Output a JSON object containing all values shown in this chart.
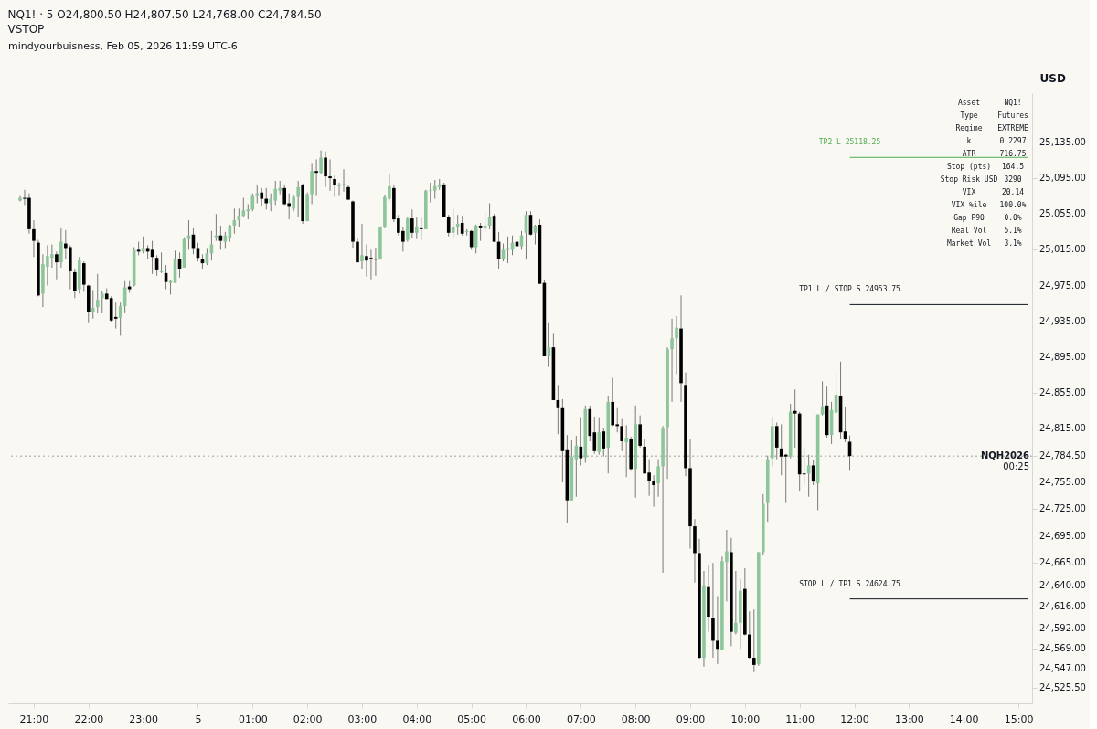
{
  "chart_data": {
    "type": "candlestick",
    "title": "NQ1! · 5 O24,800.50 H24,807.50 L24,768.00 C24,784.50",
    "subtitle": "VSTOP",
    "ylabel": "USD",
    "annotations": [
      "mindyourbuisness, Feb 05, 2026 11:59 UTC-6",
      "00:25",
      "Asset",
      "NQ1!",
      "Type",
      "Futures",
      "Regime",
      "EXTREME",
      "k",
      "0.2297",
      "ATR",
      "716.75",
      "Stop (pts)",
      "164.5",
      "Stop Risk USD",
      "3290",
      "VIX",
      "20.14",
      "VIX %ile",
      "100.0%",
      "Gap P90",
      "0.0%",
      "Real Vol",
      "5.1%",
      "Market Vol",
      "3.1%"
    ],
    "xlim": [
      "2026-02-04T20:37",
      "2026-02-05T15:10"
    ],
    "xticks": [
      {
        "value": "2026-02-04T21:00",
        "label": "21:00"
      },
      {
        "value": "2026-02-04T22:00",
        "label": "22:00"
      },
      {
        "value": "2026-02-04T23:00",
        "label": "23:00"
      },
      {
        "value": "2026-02-05T00:00",
        "label": "5"
      },
      {
        "value": "2026-02-05T01:00",
        "label": "01:00"
      },
      {
        "value": "2026-02-05T02:00",
        "label": "02:00"
      },
      {
        "value": "2026-02-05T03:00",
        "label": "03:00"
      },
      {
        "value": "2026-02-05T04:00",
        "label": "04:00"
      },
      {
        "value": "2026-02-05T05:00",
        "label": "05:00"
      },
      {
        "value": "2026-02-05T06:00",
        "label": "06:00"
      },
      {
        "value": "2026-02-05T07:00",
        "label": "07:00"
      },
      {
        "value": "2026-02-05T08:00",
        "label": "08:00"
      },
      {
        "value": "2026-02-05T09:00",
        "label": "09:00"
      },
      {
        "value": "2026-02-05T10:00",
        "label": "10:00"
      },
      {
        "value": "2026-02-05T11:00",
        "label": "11:00"
      },
      {
        "value": "2026-02-05T12:00",
        "label": "12:00"
      },
      {
        "value": "2026-02-05T13:00",
        "label": "13:00"
      },
      {
        "value": "2026-02-05T14:00",
        "label": "14:00"
      },
      {
        "value": "2026-02-05T15:00",
        "label": "15:00"
      }
    ],
    "ylim": [
      24508,
      25190
    ],
    "yticks": [
      {
        "value": 25135,
        "label": "25,135.00"
      },
      {
        "value": 25095,
        "label": "25,095.00"
      },
      {
        "value": 25055,
        "label": "25,055.00"
      },
      {
        "value": 25015,
        "label": "25,015.00"
      },
      {
        "value": 24975,
        "label": "24,975.00"
      },
      {
        "value": 24935,
        "label": "24,935.00"
      },
      {
        "value": 24895,
        "label": "24,895.00"
      },
      {
        "value": 24855,
        "label": "24,855.00"
      },
      {
        "value": 24815,
        "label": "24,815.00"
      },
      {
        "value": 24784.5,
        "label": "24,784.50"
      },
      {
        "value": 24755,
        "label": "24,755.00"
      },
      {
        "value": 24725,
        "label": "24,725.00"
      },
      {
        "value": 24695,
        "label": "24,695.00"
      },
      {
        "value": 24665,
        "label": "24,665.00"
      },
      {
        "value": 24640,
        "label": "24,640.00"
      },
      {
        "value": 24616,
        "label": "24,616.00"
      },
      {
        "value": 24592,
        "label": "24,592.00"
      },
      {
        "value": 24569,
        "label": "24,569.00"
      },
      {
        "value": 24547,
        "label": "24,547.00"
      },
      {
        "value": 24525.5,
        "label": "24,525.50"
      }
    ],
    "ref_lines": [
      {
        "axis": "y",
        "value": 25118.25,
        "label": "TP2 L 25118.25",
        "color": "#4caf50",
        "line_style": "solid"
      },
      {
        "axis": "y",
        "value": 24953.75,
        "label": "TP1 L / STOP S 24953.75",
        "color": "#131722",
        "line_style": "solid"
      },
      {
        "axis": "y",
        "value": 24624.75,
        "label": "STOP L / TP1 S 24624.75",
        "color": "#131722",
        "line_style": "solid"
      },
      {
        "axis": "y",
        "value": 24784.5,
        "label": "NQH2026",
        "color": "#9e9e9e",
        "line_style": "dotted"
      }
    ],
    "x": [
      "2026-02-04T20:45",
      "2026-02-04T20:50",
      "2026-02-04T20:55",
      "2026-02-04T21:00",
      "2026-02-04T21:05",
      "2026-02-04T21:10",
      "2026-02-04T21:15",
      "2026-02-04T21:20",
      "2026-02-04T21:25",
      "2026-02-04T21:30",
      "2026-02-04T21:35",
      "2026-02-04T21:40",
      "2026-02-04T21:45",
      "2026-02-04T21:50",
      "2026-02-04T21:55",
      "2026-02-04T22:00",
      "2026-02-04T22:05",
      "2026-02-04T22:10",
      "2026-02-04T22:15",
      "2026-02-04T22:20",
      "2026-02-04T22:25",
      "2026-02-04T22:30",
      "2026-02-04T22:35",
      "2026-02-04T22:40",
      "2026-02-04T22:45",
      "2026-02-04T22:50",
      "2026-02-04T22:55",
      "2026-02-04T23:00",
      "2026-02-04T23:05",
      "2026-02-04T23:10",
      "2026-02-04T23:15",
      "2026-02-04T23:20",
      "2026-02-04T23:25",
      "2026-02-04T23:30",
      "2026-02-04T23:35",
      "2026-02-04T23:40",
      "2026-02-04T23:45",
      "2026-02-04T23:50",
      "2026-02-04T23:55",
      "2026-02-05T00:00",
      "2026-02-05T00:05",
      "2026-02-05T00:10",
      "2026-02-05T00:15",
      "2026-02-05T00:20",
      "2026-02-05T00:25",
      "2026-02-05T00:30",
      "2026-02-05T00:35",
      "2026-02-05T00:40",
      "2026-02-05T00:45",
      "2026-02-05T00:50",
      "2026-02-05T00:55",
      "2026-02-05T01:00",
      "2026-02-05T01:05",
      "2026-02-05T01:10",
      "2026-02-05T01:15",
      "2026-02-05T01:20",
      "2026-02-05T01:25",
      "2026-02-05T01:30",
      "2026-02-05T01:35",
      "2026-02-05T01:40",
      "2026-02-05T01:45",
      "2026-02-05T01:50",
      "2026-02-05T01:55",
      "2026-02-05T02:00",
      "2026-02-05T02:05",
      "2026-02-05T02:10",
      "2026-02-05T02:15",
      "2026-02-05T02:20",
      "2026-02-05T02:25",
      "2026-02-05T02:30",
      "2026-02-05T02:35",
      "2026-02-05T02:40",
      "2026-02-05T02:45",
      "2026-02-05T02:50",
      "2026-02-05T02:55",
      "2026-02-05T03:00",
      "2026-02-05T03:05",
      "2026-02-05T03:10",
      "2026-02-05T03:15",
      "2026-02-05T03:20",
      "2026-02-05T03:25",
      "2026-02-05T03:30",
      "2026-02-05T03:35",
      "2026-02-05T03:40",
      "2026-02-05T03:45",
      "2026-02-05T03:50",
      "2026-02-05T03:55",
      "2026-02-05T04:00",
      "2026-02-05T04:05",
      "2026-02-05T04:10",
      "2026-02-05T04:15",
      "2026-02-05T04:20",
      "2026-02-05T04:25",
      "2026-02-05T04:30",
      "2026-02-05T04:35",
      "2026-02-05T04:40",
      "2026-02-05T04:45",
      "2026-02-05T04:50",
      "2026-02-05T04:55",
      "2026-02-05T05:00",
      "2026-02-05T05:05",
      "2026-02-05T05:10",
      "2026-02-05T05:15",
      "2026-02-05T05:20",
      "2026-02-05T05:25",
      "2026-02-05T05:30",
      "2026-02-05T05:35",
      "2026-02-05T05:40",
      "2026-02-05T05:45",
      "2026-02-05T05:50",
      "2026-02-05T05:55",
      "2026-02-05T06:00",
      "2026-02-05T06:05",
      "2026-02-05T06:10",
      "2026-02-05T06:15",
      "2026-02-05T06:20",
      "2026-02-05T06:25",
      "2026-02-05T06:30",
      "2026-02-05T06:35",
      "2026-02-05T06:40",
      "2026-02-05T06:45",
      "2026-02-05T06:50",
      "2026-02-05T06:55",
      "2026-02-05T07:00",
      "2026-02-05T07:05",
      "2026-02-05T07:10",
      "2026-02-05T07:15",
      "2026-02-05T07:20",
      "2026-02-05T07:25",
      "2026-02-05T07:30",
      "2026-02-05T07:35",
      "2026-02-05T07:40",
      "2026-02-05T07:45",
      "2026-02-05T07:50",
      "2026-02-05T07:55",
      "2026-02-05T08:00",
      "2026-02-05T08:05",
      "2026-02-05T08:10",
      "2026-02-05T08:15",
      "2026-02-05T08:20",
      "2026-02-05T08:25",
      "2026-02-05T08:30",
      "2026-02-05T08:35",
      "2026-02-05T08:40",
      "2026-02-05T08:45",
      "2026-02-05T08:50",
      "2026-02-05T08:55",
      "2026-02-05T09:00",
      "2026-02-05T09:05",
      "2026-02-05T09:10",
      "2026-02-05T09:15",
      "2026-02-05T09:20",
      "2026-02-05T09:25",
      "2026-02-05T09:30",
      "2026-02-05T09:35",
      "2026-02-05T09:40",
      "2026-02-05T09:45",
      "2026-02-05T09:50",
      "2026-02-05T09:55",
      "2026-02-05T10:00",
      "2026-02-05T10:05",
      "2026-02-05T10:10",
      "2026-02-05T10:15",
      "2026-02-05T10:20",
      "2026-02-05T10:25",
      "2026-02-05T10:30",
      "2026-02-05T10:35",
      "2026-02-05T10:40",
      "2026-02-05T10:45",
      "2026-02-05T10:50",
      "2026-02-05T10:55",
      "2026-02-05T11:00",
      "2026-02-05T11:05",
      "2026-02-05T11:10",
      "2026-02-05T11:15",
      "2026-02-05T11:20",
      "2026-02-05T11:25",
      "2026-02-05T11:30",
      "2026-02-05T11:35",
      "2026-02-05T11:40",
      "2026-02-05T11:45",
      "2026-02-05T11:50",
      "2026-02-05T11:55"
    ],
    "ohlc": [
      [
        25070,
        25075,
        25069,
        25073
      ],
      [
        25073,
        25082,
        25065,
        25072
      ],
      [
        25073,
        25078,
        25033,
        25038
      ],
      [
        25038,
        25048,
        25007,
        25025
      ],
      [
        25023,
        25026,
        24963,
        24964
      ],
      [
        24966,
        25010,
        24951,
        24999
      ],
      [
        24996,
        25020,
        24975,
        25008
      ],
      [
        25006,
        25021,
        24995,
        25010
      ],
      [
        25010,
        25013,
        24982,
        25001
      ],
      [
        25001,
        25039,
        24995,
        25024
      ],
      [
        25022,
        25037,
        25005,
        25016
      ],
      [
        25018,
        25020,
        24971,
        24991
      ],
      [
        24990,
        24994,
        24961,
        24969
      ],
      [
        24971,
        25007,
        24966,
        25003
      ],
      [
        25000,
        25002,
        24968,
        24976
      ],
      [
        24975,
        24976,
        24933,
        24946
      ],
      [
        24946,
        24970,
        24938,
        24950
      ],
      [
        24951,
        24988,
        24944,
        24959
      ],
      [
        24961,
        24969,
        24944,
        24966
      ],
      [
        24966,
        24972,
        24960,
        24960
      ],
      [
        24961,
        24963,
        24934,
        24936
      ],
      [
        24940,
        24956,
        24927,
        24938
      ],
      [
        24939,
        24956,
        24919,
        24952
      ],
      [
        24952,
        24980,
        24944,
        24973
      ],
      [
        24974,
        24980,
        24967,
        24971
      ],
      [
        24975,
        25018,
        24974,
        25015
      ],
      [
        25015,
        25024,
        25009,
        25013
      ],
      [
        25013,
        25030,
        25011,
        25016
      ],
      [
        25016,
        25020,
        25005,
        25013
      ],
      [
        25015,
        25025,
        24988,
        25007
      ],
      [
        25006,
        25009,
        24986,
        24992
      ],
      [
        24990,
        25012,
        24989,
        24991
      ],
      [
        24989,
        24998,
        24971,
        24979
      ],
      [
        24978,
        24981,
        24965,
        24980
      ],
      [
        24978,
        25014,
        24978,
        25005
      ],
      [
        25005,
        25012,
        24984,
        24993
      ],
      [
        24995,
        25029,
        24995,
        25027
      ],
      [
        25027,
        25048,
        25015,
        25031
      ],
      [
        25032,
        25039,
        25010,
        25016
      ],
      [
        25016,
        25023,
        25002,
        25006
      ],
      [
        25005,
        25010,
        24993,
        25000
      ],
      [
        25000,
        25016,
        24998,
        25011
      ],
      [
        25011,
        25036,
        25003,
        25021
      ],
      [
        25029,
        25055,
        25025,
        25031
      ],
      [
        25031,
        25042,
        25015,
        25025
      ],
      [
        25024,
        25035,
        25016,
        25031
      ],
      [
        25028,
        25043,
        25024,
        25042
      ],
      [
        25042,
        25061,
        25033,
        25048
      ],
      [
        25048,
        25061,
        25041,
        25053
      ],
      [
        25053,
        25073,
        25052,
        25059
      ],
      [
        25058,
        25066,
        25049,
        25060
      ],
      [
        25060,
        25078,
        25058,
        25075
      ],
      [
        25075,
        25088,
        25067,
        25078
      ],
      [
        25079,
        25084,
        25064,
        25072
      ],
      [
        25072,
        25084,
        25060,
        25067
      ],
      [
        25067,
        25078,
        25058,
        25072
      ],
      [
        25070,
        25092,
        25065,
        25083
      ],
      [
        25081,
        25092,
        25077,
        25084
      ],
      [
        25084,
        25088,
        25065,
        25066
      ],
      [
        25067,
        25078,
        25049,
        25063
      ],
      [
        25061,
        25076,
        25058,
        25074
      ],
      [
        25074,
        25092,
        25052,
        25085
      ],
      [
        25087,
        25089,
        25044,
        25047
      ],
      [
        25047,
        25079,
        25047,
        25077
      ],
      [
        25077,
        25112,
        25066,
        25103
      ],
      [
        25103,
        25116,
        25075,
        25101
      ],
      [
        25101,
        25126,
        25100,
        25118
      ],
      [
        25118,
        25125,
        25085,
        25097
      ],
      [
        25097,
        25116,
        25081,
        25095
      ],
      [
        25094,
        25098,
        25074,
        25087
      ],
      [
        25086,
        25090,
        25075,
        25088
      ],
      [
        25088,
        25105,
        25080,
        25087
      ],
      [
        25085,
        25087,
        25071,
        25071
      ],
      [
        25069,
        25070,
        25017,
        25024
      ],
      [
        25024,
        25028,
        25001,
        25001
      ],
      [
        25002,
        25044,
        24993,
        25009
      ],
      [
        25008,
        25021,
        24985,
        25003
      ],
      [
        25006,
        25015,
        24982,
        25005
      ],
      [
        25005,
        25017,
        24986,
        25004
      ],
      [
        25005,
        25041,
        25004,
        25040
      ],
      [
        25040,
        25076,
        25039,
        25074
      ],
      [
        25072,
        25099,
        25070,
        25086
      ],
      [
        25084,
        25088,
        25046,
        25049
      ],
      [
        25050,
        25054,
        25031,
        25034
      ],
      [
        25036,
        25041,
        25013,
        25024
      ],
      [
        25026,
        25052,
        25024,
        25050
      ],
      [
        25050,
        25060,
        25028,
        25034
      ],
      [
        25034,
        25051,
        25027,
        25041
      ],
      [
        25039,
        25051,
        25026,
        25038
      ],
      [
        25038,
        25082,
        25038,
        25081
      ],
      [
        25081,
        25090,
        25068,
        25082
      ],
      [
        25081,
        25093,
        25072,
        25086
      ],
      [
        25085,
        25094,
        25082,
        25088
      ],
      [
        25088,
        25090,
        25051,
        25052
      ],
      [
        25052,
        25054,
        25030,
        25034
      ],
      [
        25034,
        25061,
        25029,
        25040
      ],
      [
        25040,
        25054,
        25032,
        25044
      ],
      [
        25045,
        25053,
        25031,
        25033
      ],
      [
        25035,
        25038,
        25031,
        25036
      ],
      [
        25036,
        25037,
        25015,
        25018
      ],
      [
        25018,
        25043,
        25011,
        25042
      ],
      [
        25042,
        25045,
        25025,
        25039
      ],
      [
        25039,
        25056,
        25035,
        25042
      ],
      [
        25042,
        25067,
        25038,
        25052
      ],
      [
        25053,
        25055,
        25024,
        25024
      ],
      [
        25024,
        25035,
        24994,
        25005
      ],
      [
        25005,
        25022,
        25002,
        25015
      ],
      [
        25015,
        25030,
        25000,
        25016
      ],
      [
        25015,
        25031,
        25009,
        25023
      ],
      [
        25024,
        25028,
        25016,
        25019
      ],
      [
        25019,
        25036,
        25015,
        25031
      ],
      [
        25034,
        25058,
        25004,
        25054
      ],
      [
        25054,
        25058,
        25031,
        25032
      ],
      [
        25034,
        25043,
        25021,
        25042
      ],
      [
        25043,
        25049,
        24977,
        24977
      ],
      [
        24978,
        24981,
        24896,
        24896
      ],
      [
        24896,
        24933,
        24884,
        24906
      ],
      [
        24906,
        24921,
        24847,
        24847
      ],
      [
        24847,
        24864,
        24809,
        24838
      ],
      [
        24838,
        24848,
        24755,
        24790
      ],
      [
        24791,
        24808,
        24710,
        24735
      ],
      [
        24735,
        24802,
        24735,
        24784
      ],
      [
        24781,
        24807,
        24739,
        24796
      ],
      [
        24795,
        24827,
        24774,
        24782
      ],
      [
        24783,
        24841,
        24777,
        24837
      ],
      [
        24837,
        24841,
        24801,
        24807
      ],
      [
        24811,
        24828,
        24787,
        24790
      ],
      [
        24789,
        24827,
        24786,
        24811
      ],
      [
        24812,
        24816,
        24784,
        24793
      ],
      [
        24794,
        24851,
        24765,
        24845
      ],
      [
        24845,
        24872,
        24818,
        24819
      ],
      [
        24820,
        24838,
        24811,
        24818
      ],
      [
        24818,
        24826,
        24790,
        24801
      ],
      [
        24800,
        24819,
        24761,
        24804
      ],
      [
        24803,
        24806,
        24768,
        24770
      ],
      [
        24770,
        24841,
        24738,
        24820
      ],
      [
        24820,
        24830,
        24794,
        24796
      ],
      [
        24795,
        24803,
        24765,
        24765
      ],
      [
        24766,
        24781,
        24740,
        24757
      ],
      [
        24757,
        24763,
        24728,
        24752
      ],
      [
        24754,
        24781,
        24739,
        24773
      ],
      [
        24773,
        24818,
        24654,
        24815
      ],
      [
        24817,
        24906,
        24759,
        24904
      ],
      [
        24904,
        24938,
        24845,
        24916
      ],
      [
        24916,
        24941,
        24876,
        24928
      ],
      [
        24927,
        24964,
        24845,
        24866
      ],
      [
        24864,
        24878,
        24762,
        24771
      ],
      [
        24771,
        24803,
        24681,
        24706
      ],
      [
        24706,
        24714,
        24643,
        24676
      ],
      [
        24676,
        24692,
        24558,
        24559
      ],
      [
        24559,
        24656,
        24549,
        24640
      ],
      [
        24638,
        24662,
        24588,
        24605
      ],
      [
        24603,
        24665,
        24559,
        24578
      ],
      [
        24578,
        24628,
        24552,
        24569
      ],
      [
        24568,
        24672,
        24568,
        24667
      ],
      [
        24666,
        24702,
        24622,
        24678
      ],
      [
        24677,
        24693,
        24572,
        24588
      ],
      [
        24587,
        24656,
        24585,
        24598
      ],
      [
        24598,
        24647,
        24569,
        24634
      ],
      [
        24636,
        24659,
        24584,
        24585
      ],
      [
        24585,
        24611,
        24558,
        24559
      ],
      [
        24559,
        24613,
        24543,
        24551
      ],
      [
        24552,
        24677,
        24550,
        24677
      ],
      [
        24677,
        24742,
        24674,
        24731
      ],
      [
        24732,
        24785,
        24711,
        24781
      ],
      [
        24782,
        24828,
        24773,
        24818
      ],
      [
        24818,
        24822,
        24781,
        24794
      ],
      [
        24793,
        24820,
        24763,
        24784
      ],
      [
        24786,
        24787,
        24732,
        24784
      ],
      [
        24784,
        24843,
        24782,
        24834
      ],
      [
        24835,
        24859,
        24794,
        24832
      ],
      [
        24832,
        24834,
        24745,
        24764
      ],
      [
        24765,
        24794,
        24752,
        24764
      ],
      [
        24765,
        24786,
        24739,
        24774
      ],
      [
        24774,
        24780,
        24752,
        24756
      ],
      [
        24754,
        24831,
        24724,
        24831
      ],
      [
        24831,
        24868,
        24830,
        24840
      ],
      [
        24841,
        24862,
        24804,
        24808
      ],
      [
        24808,
        24845,
        24798,
        24836
      ],
      [
        24833,
        24880,
        24829,
        24853
      ],
      [
        24852,
        24890,
        24803,
        24811
      ],
      [
        24812,
        24839,
        24800,
        24803
      ],
      [
        24800.5,
        24807.5,
        24768,
        24784.5
      ]
    ],
    "colors": [
      "#8dc69b",
      "#000000",
      "#000000",
      "#000000",
      "#000000",
      "#8dc69b",
      "#8dc69b",
      "#8dc69b",
      "#000000",
      "#8dc69b",
      "#000000",
      "#000000",
      "#000000",
      "#8dc69b",
      "#000000",
      "#000000",
      "#8dc69b",
      "#8dc69b",
      "#8dc69b",
      "#000000",
      "#000000",
      "#000000",
      "#8dc69b",
      "#8dc69b",
      "#000000",
      "#8dc69b",
      "#000000",
      "#8dc69b",
      "#000000",
      "#000000",
      "#000000",
      "#8dc69b",
      "#000000",
      "#8dc69b",
      "#8dc69b",
      "#000000",
      "#8dc69b",
      "#8dc69b",
      "#000000",
      "#000000",
      "#000000",
      "#8dc69b",
      "#8dc69b",
      "#8dc69b",
      "#000000",
      "#8dc69b",
      "#8dc69b",
      "#8dc69b",
      "#8dc69b",
      "#8dc69b",
      "#8dc69b",
      "#8dc69b",
      "#8dc69b",
      "#000000",
      "#000000",
      "#8dc69b",
      "#8dc69b",
      "#8dc69b",
      "#000000",
      "#000000",
      "#8dc69b",
      "#8dc69b",
      "#000000",
      "#8dc69b",
      "#8dc69b",
      "#000000",
      "#8dc69b",
      "#000000",
      "#000000",
      "#000000",
      "#8dc69b",
      "#000000",
      "#000000",
      "#000000",
      "#000000",
      "#8dc69b",
      "#000000",
      "#000000",
      "#000000",
      "#8dc69b",
      "#8dc69b",
      "#8dc69b",
      "#000000",
      "#000000",
      "#000000",
      "#8dc69b",
      "#000000",
      "#8dc69b",
      "#000000",
      "#8dc69b",
      "#8dc69b",
      "#8dc69b",
      "#8dc69b",
      "#000000",
      "#000000",
      "#8dc69b",
      "#8dc69b",
      "#000000",
      "#8dc69b",
      "#000000",
      "#8dc69b",
      "#000000",
      "#8dc69b",
      "#8dc69b",
      "#000000",
      "#000000",
      "#8dc69b",
      "#8dc69b",
      "#8dc69b",
      "#000000",
      "#8dc69b",
      "#8dc69b",
      "#000000",
      "#8dc69b",
      "#000000",
      "#000000",
      "#8dc69b",
      "#000000",
      "#000000",
      "#000000",
      "#000000",
      "#8dc69b",
      "#8dc69b",
      "#000000",
      "#8dc69b",
      "#000000",
      "#000000",
      "#8dc69b",
      "#000000",
      "#8dc69b",
      "#000000",
      "#000000",
      "#000000",
      "#8dc69b",
      "#000000",
      "#8dc69b",
      "#000000",
      "#000000",
      "#000000",
      "#000000",
      "#8dc69b",
      "#8dc69b",
      "#8dc69b",
      "#8dc69b",
      "#8dc69b",
      "#000000",
      "#000000",
      "#000000",
      "#000000",
      "#000000",
      "#8dc69b",
      "#000000",
      "#000000",
      "#000000",
      "#8dc69b",
      "#8dc69b",
      "#000000",
      "#8dc69b",
      "#8dc69b",
      "#000000",
      "#000000",
      "#000000",
      "#8dc69b",
      "#8dc69b",
      "#8dc69b",
      "#8dc69b",
      "#000000",
      "#000000",
      "#000000",
      "#8dc69b",
      "#000000",
      "#000000",
      "#000000",
      "#8dc69b",
      "#000000",
      "#8dc69b",
      "#8dc69b",
      "#000000",
      "#8dc69b",
      "#8dc69b",
      "#000000",
      "#000000",
      "#000000"
    ]
  }
}
